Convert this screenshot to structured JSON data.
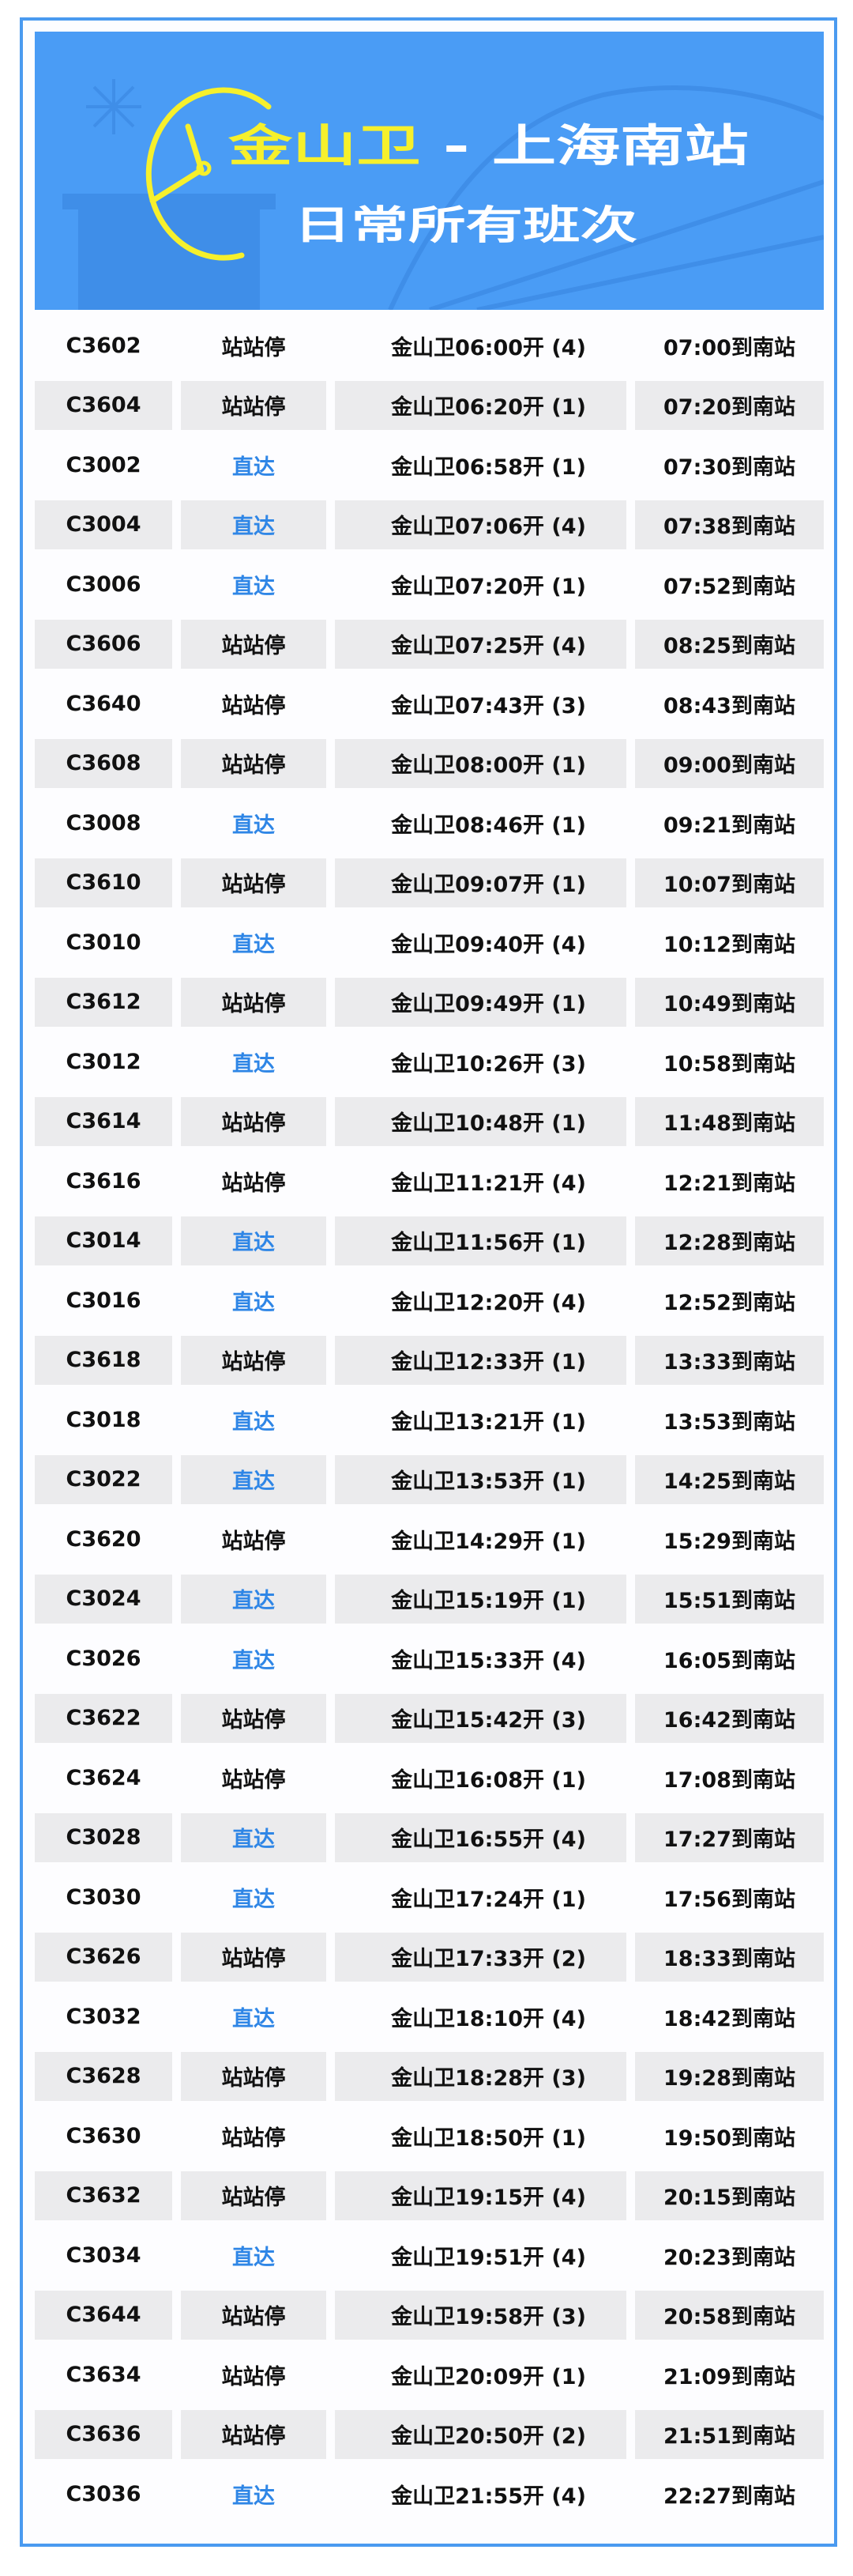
{
  "banner": {
    "title_origin": "金山卫",
    "title_dest": "- 上海南站",
    "subtitle": "日常所有班次",
    "colors": {
      "background": "#4a9cf5",
      "accent": "#f6f02c"
    },
    "icon": "clock-icon"
  },
  "colors": {
    "direct": "#2f86e6",
    "row_alt": "#ebebed",
    "frame": "#4a9af0"
  },
  "rows": [
    {
      "train": "C3602",
      "type": "站站停",
      "depart": "金山卫06:00开 (4)",
      "arrive": "07:00到南站"
    },
    {
      "train": "C3604",
      "type": "站站停",
      "depart": "金山卫06:20开 (1)",
      "arrive": "07:20到南站"
    },
    {
      "train": "C3002",
      "type": "直达",
      "depart": "金山卫06:58开 (1)",
      "arrive": "07:30到南站"
    },
    {
      "train": "C3004",
      "type": "直达",
      "depart": "金山卫07:06开 (4)",
      "arrive": "07:38到南站"
    },
    {
      "train": "C3006",
      "type": "直达",
      "depart": "金山卫07:20开 (1)",
      "arrive": "07:52到南站"
    },
    {
      "train": "C3606",
      "type": "站站停",
      "depart": "金山卫07:25开 (4)",
      "arrive": "08:25到南站"
    },
    {
      "train": "C3640",
      "type": "站站停",
      "depart": "金山卫07:43开 (3)",
      "arrive": "08:43到南站"
    },
    {
      "train": "C3608",
      "type": "站站停",
      "depart": "金山卫08:00开 (1)",
      "arrive": "09:00到南站"
    },
    {
      "train": "C3008",
      "type": "直达",
      "depart": "金山卫08:46开 (1)",
      "arrive": "09:21到南站"
    },
    {
      "train": "C3610",
      "type": "站站停",
      "depart": "金山卫09:07开 (1)",
      "arrive": "10:07到南站"
    },
    {
      "train": "C3010",
      "type": "直达",
      "depart": "金山卫09:40开 (4)",
      "arrive": "10:12到南站"
    },
    {
      "train": "C3612",
      "type": "站站停",
      "depart": "金山卫09:49开 (1)",
      "arrive": "10:49到南站"
    },
    {
      "train": "C3012",
      "type": "直达",
      "depart": "金山卫10:26开 (3)",
      "arrive": "10:58到南站"
    },
    {
      "train": "C3614",
      "type": "站站停",
      "depart": "金山卫10:48开 (1)",
      "arrive": "11:48到南站"
    },
    {
      "train": "C3616",
      "type": "站站停",
      "depart": "金山卫11:21开 (4)",
      "arrive": "12:21到南站"
    },
    {
      "train": "C3014",
      "type": "直达",
      "depart": "金山卫11:56开 (1)",
      "arrive": "12:28到南站"
    },
    {
      "train": "C3016",
      "type": "直达",
      "depart": "金山卫12:20开 (4)",
      "arrive": "12:52到南站"
    },
    {
      "train": "C3618",
      "type": "站站停",
      "depart": "金山卫12:33开 (1)",
      "arrive": "13:33到南站"
    },
    {
      "train": "C3018",
      "type": "直达",
      "depart": "金山卫13:21开 (1)",
      "arrive": "13:53到南站"
    },
    {
      "train": "C3022",
      "type": "直达",
      "depart": "金山卫13:53开 (1)",
      "arrive": "14:25到南站"
    },
    {
      "train": "C3620",
      "type": "站站停",
      "depart": "金山卫14:29开 (1)",
      "arrive": "15:29到南站"
    },
    {
      "train": "C3024",
      "type": "直达",
      "depart": "金山卫15:19开 (1)",
      "arrive": "15:51到南站"
    },
    {
      "train": "C3026",
      "type": "直达",
      "depart": "金山卫15:33开 (4)",
      "arrive": "16:05到南站"
    },
    {
      "train": "C3622",
      "type": "站站停",
      "depart": "金山卫15:42开 (3)",
      "arrive": "16:42到南站"
    },
    {
      "train": "C3624",
      "type": "站站停",
      "depart": "金山卫16:08开 (1)",
      "arrive": "17:08到南站"
    },
    {
      "train": "C3028",
      "type": "直达",
      "depart": "金山卫16:55开 (4)",
      "arrive": "17:27到南站"
    },
    {
      "train": "C3030",
      "type": "直达",
      "depart": "金山卫17:24开 (1)",
      "arrive": "17:56到南站"
    },
    {
      "train": "C3626",
      "type": "站站停",
      "depart": "金山卫17:33开 (2)",
      "arrive": "18:33到南站"
    },
    {
      "train": "C3032",
      "type": "直达",
      "depart": "金山卫18:10开 (4)",
      "arrive": "18:42到南站"
    },
    {
      "train": "C3628",
      "type": "站站停",
      "depart": "金山卫18:28开 (3)",
      "arrive": "19:28到南站"
    },
    {
      "train": "C3630",
      "type": "站站停",
      "depart": "金山卫18:50开 (1)",
      "arrive": "19:50到南站"
    },
    {
      "train": "C3632",
      "type": "站站停",
      "depart": "金山卫19:15开 (4)",
      "arrive": "20:15到南站"
    },
    {
      "train": "C3034",
      "type": "直达",
      "depart": "金山卫19:51开 (4)",
      "arrive": "20:23到南站"
    },
    {
      "train": "C3644",
      "type": "站站停",
      "depart": "金山卫19:58开 (3)",
      "arrive": "20:58到南站"
    },
    {
      "train": "C3634",
      "type": "站站停",
      "depart": "金山卫20:09开 (1)",
      "arrive": "21:09到南站"
    },
    {
      "train": "C3636",
      "type": "站站停",
      "depart": "金山卫20:50开 (2)",
      "arrive": "21:51到南站"
    },
    {
      "train": "C3036",
      "type": "直达",
      "depart": "金山卫21:55开 (4)",
      "arrive": "22:27到南站"
    }
  ]
}
